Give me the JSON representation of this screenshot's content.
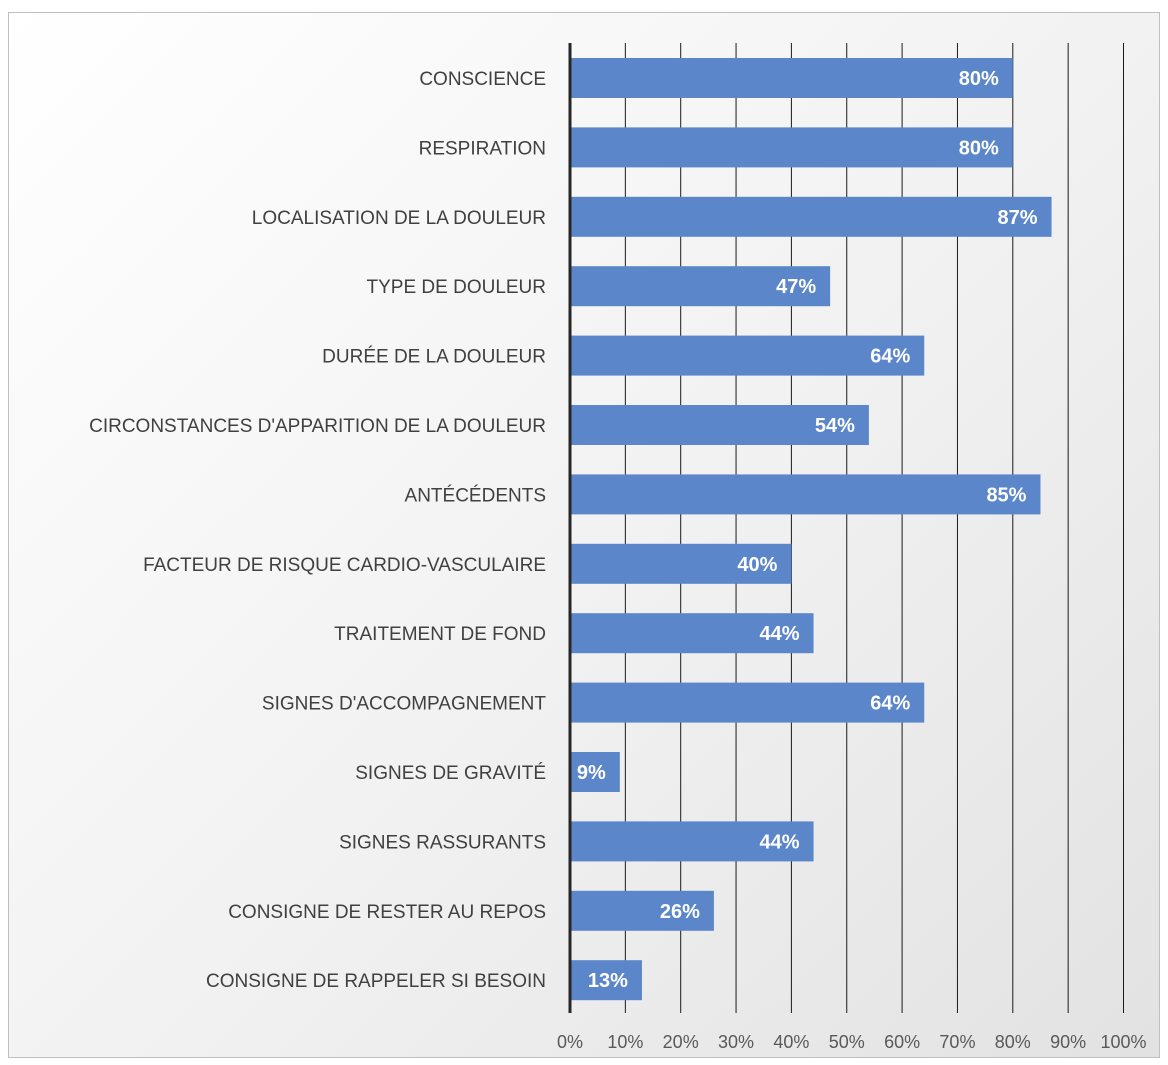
{
  "chart_data": {
    "type": "bar",
    "orientation": "horizontal",
    "categories": [
      "CONSCIENCE",
      "RESPIRATION",
      "LOCALISATION DE LA DOULEUR",
      "TYPE DE DOULEUR",
      "DURÉE DE LA DOULEUR",
      "CIRCONSTANCES D'APPARITION DE LA DOULEUR",
      "ANTÉCÉDENTS",
      "FACTEUR DE RISQUE CARDIO-VASCULAIRE",
      "TRAITEMENT DE FOND",
      "SIGNES D'ACCOMPAGNEMENT",
      "SIGNES DE GRAVITÉ",
      "SIGNES RASSURANTS",
      "CONSIGNE DE RESTER AU REPOS",
      "CONSIGNE DE RAPPELER SI BESOIN"
    ],
    "values": [
      80,
      80,
      87,
      47,
      64,
      54,
      85,
      40,
      44,
      64,
      9,
      44,
      26,
      13
    ],
    "data_labels": [
      "80%",
      "80%",
      "87%",
      "47%",
      "64%",
      "54%",
      "85%",
      "40%",
      "44%",
      "64%",
      "9%",
      "44%",
      "26%",
      "13%"
    ],
    "xlim": [
      0,
      100
    ],
    "x_ticks": [
      "0%",
      "10%",
      "20%",
      "30%",
      "40%",
      "50%",
      "60%",
      "70%",
      "80%",
      "90%",
      "100%"
    ],
    "grid": true,
    "legend": false,
    "bar_color": "#5b86c9",
    "label_color": "#ffffff"
  }
}
